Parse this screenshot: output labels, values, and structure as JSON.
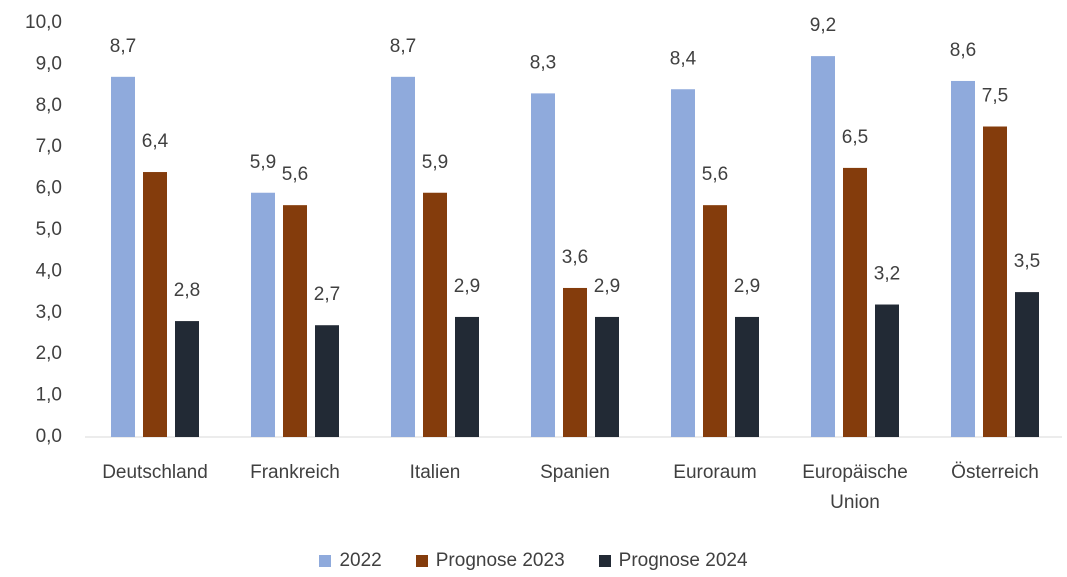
{
  "chart_data": {
    "type": "bar",
    "categories": [
      "Deutschland",
      "Frankreich",
      "Italien",
      "Spanien",
      "Euroraum",
      "Europäische Union",
      "Österreich"
    ],
    "series": [
      {
        "name": "2022",
        "color": "#8faadc",
        "values": [
          8.7,
          5.9,
          8.7,
          8.3,
          8.4,
          9.2,
          8.6
        ],
        "value_labels": [
          "8,7",
          "5,9",
          "8,7",
          "8,3",
          "8,4",
          "9,2",
          "8,6"
        ]
      },
      {
        "name": "Prognose 2023",
        "color": "#843c0c",
        "values": [
          6.4,
          5.6,
          5.9,
          3.6,
          5.6,
          6.5,
          7.5
        ],
        "value_labels": [
          "6,4",
          "5,6",
          "5,9",
          "3,6",
          "5,6",
          "6,5",
          "7,5"
        ]
      },
      {
        "name": "Prognose 2024",
        "color": "#222a35",
        "values": [
          2.8,
          2.7,
          2.9,
          2.9,
          2.9,
          3.2,
          3.5
        ],
        "value_labels": [
          "2,8",
          "2,7",
          "2,9",
          "2,9",
          "2,9",
          "3,2",
          "3,5"
        ]
      }
    ],
    "ylim": [
      0,
      10
    ],
    "yticks": [
      {
        "value": 0,
        "label": "0,0"
      },
      {
        "value": 1,
        "label": "1,0"
      },
      {
        "value": 2,
        "label": "2,0"
      },
      {
        "value": 3,
        "label": "3,0"
      },
      {
        "value": 4,
        "label": "4,0"
      },
      {
        "value": 5,
        "label": "5,0"
      },
      {
        "value": 6,
        "label": "6,0"
      },
      {
        "value": 7,
        "label": "7,0"
      },
      {
        "value": 8,
        "label": "8,0"
      },
      {
        "value": 9,
        "label": "9,0"
      },
      {
        "value": 10,
        "label": "10,0"
      }
    ],
    "grid": false,
    "legend": "bottom"
  }
}
